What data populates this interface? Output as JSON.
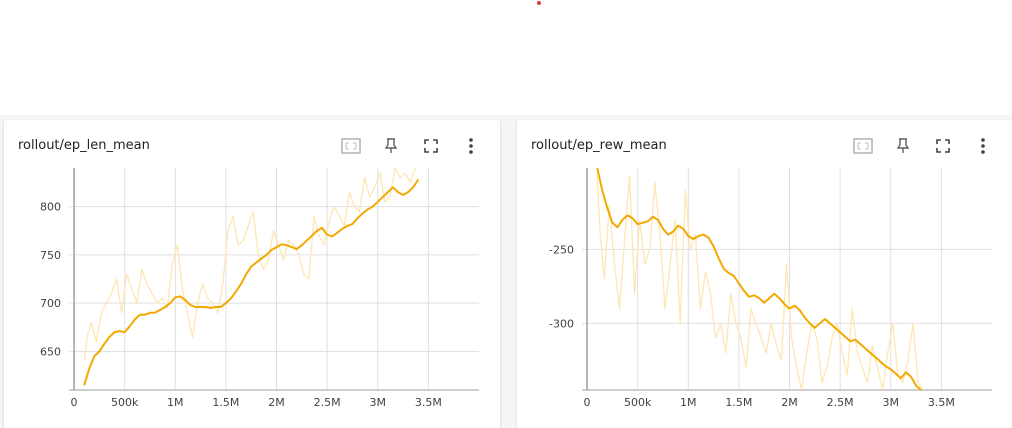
{
  "cards": [
    {
      "title": "rollout/ep_len_mean",
      "tools": [
        "fit-domain-icon",
        "pin-icon",
        "fullscreen-icon",
        "more-vert-icon"
      ],
      "chart_data": {
        "type": "line",
        "xlabel": "",
        "ylabel": "",
        "xlim": [
          -50000,
          4000000
        ],
        "ylim": [
          610,
          840
        ],
        "x_ticks": [
          {
            "v": 0,
            "label": "0"
          },
          {
            "v": 500000,
            "label": "500k"
          },
          {
            "v": 1000000,
            "label": "1M"
          },
          {
            "v": 1500000,
            "label": "1.5M"
          },
          {
            "v": 2000000,
            "label": "2M"
          },
          {
            "v": 2500000,
            "label": "2.5M"
          },
          {
            "v": 3000000,
            "label": "3M"
          },
          {
            "v": 3500000,
            "label": "3.5M"
          }
        ],
        "y_ticks": [
          {
            "v": 650,
            "label": "650"
          },
          {
            "v": 700,
            "label": "700"
          },
          {
            "v": 750,
            "label": "750"
          },
          {
            "v": 800,
            "label": "800"
          }
        ],
        "grid": true,
        "series": [
          {
            "role": "raw",
            "color": "#ffe6b3",
            "x": [
              100000,
              130000,
              170000,
              220000,
              270000,
              320000,
              370000,
              420000,
              470000,
              520000,
              570000,
              620000,
              670000,
              720000,
              770000,
              820000,
              870000,
              920000,
              970000,
              1020000,
              1070000,
              1120000,
              1170000,
              1220000,
              1270000,
              1320000,
              1370000,
              1420000,
              1470000,
              1520000,
              1570000,
              1620000,
              1670000,
              1720000,
              1770000,
              1820000,
              1870000,
              1920000,
              1970000,
              2020000,
              2070000,
              2120000,
              2170000,
              2220000,
              2270000,
              2320000,
              2370000,
              2420000,
              2470000,
              2520000,
              2570000,
              2620000,
              2670000,
              2720000,
              2770000,
              2820000,
              2870000,
              2920000,
              2970000,
              3020000,
              3070000,
              3120000,
              3170000,
              3220000,
              3270000,
              3320000,
              3370000
            ],
            "y": [
              640,
              665,
              680,
              660,
              690,
              700,
              710,
              725,
              690,
              730,
              715,
              700,
              735,
              720,
              710,
              700,
              705,
              695,
              740,
              760,
              715,
              690,
              665,
              700,
              720,
              705,
              700,
              690,
              720,
              775,
              790,
              760,
              765,
              780,
              795,
              750,
              735,
              745,
              775,
              760,
              745,
              765,
              760,
              750,
              730,
              725,
              790,
              770,
              760,
              785,
              800,
              790,
              780,
              815,
              800,
              795,
              830,
              810,
              820,
              835,
              805,
              810,
              840,
              830,
              835,
              825,
              840
            ]
          },
          {
            "role": "smoothed",
            "color": "#f2a900",
            "x": [
              100000,
              150000,
              200000,
              250000,
              300000,
              350000,
              400000,
              450000,
              500000,
              550000,
              600000,
              650000,
              700000,
              750000,
              800000,
              850000,
              900000,
              950000,
              1000000,
              1050000,
              1100000,
              1150000,
              1200000,
              1250000,
              1300000,
              1350000,
              1400000,
              1450000,
              1500000,
              1550000,
              1600000,
              1650000,
              1700000,
              1750000,
              1800000,
              1850000,
              1900000,
              1950000,
              2000000,
              2050000,
              2100000,
              2150000,
              2200000,
              2250000,
              2300000,
              2350000,
              2400000,
              2450000,
              2500000,
              2550000,
              2600000,
              2650000,
              2700000,
              2750000,
              2800000,
              2850000,
              2900000,
              2950000,
              3000000,
              3050000,
              3100000,
              3150000,
              3200000,
              3250000,
              3300000,
              3350000,
              3400000
            ],
            "y": [
              615,
              632,
              645,
              650,
              658,
              665,
              670,
              671,
              670,
              676,
              683,
              688,
              688,
              690,
              690,
              693,
              696,
              700,
              706,
              707,
              703,
              698,
              696,
              696,
              696,
              695,
              696,
              696,
              700,
              705,
              712,
              720,
              730,
              738,
              742,
              746,
              750,
              755,
              758,
              761,
              760,
              758,
              756,
              760,
              765,
              770,
              775,
              778,
              771,
              769,
              773,
              777,
              780,
              782,
              788,
              793,
              797,
              800,
              805,
              810,
              815,
              820,
              815,
              812,
              815,
              820,
              828
            ]
          }
        ]
      }
    },
    {
      "title": "rollout/ep_rew_mean",
      "tools": [
        "fit-domain-icon",
        "pin-icon",
        "fullscreen-icon",
        "more-vert-icon"
      ],
      "chart_data": {
        "type": "line",
        "xlabel": "",
        "ylabel": "",
        "xlim": [
          -50000,
          4000000
        ],
        "ylim": [
          -345,
          -195
        ],
        "x_ticks": [
          {
            "v": 0,
            "label": "0"
          },
          {
            "v": 500000,
            "label": "500k"
          },
          {
            "v": 1000000,
            "label": "1M"
          },
          {
            "v": 1500000,
            "label": "1.5M"
          },
          {
            "v": 2000000,
            "label": "2M"
          },
          {
            "v": 2500000,
            "label": "2.5M"
          },
          {
            "v": 3000000,
            "label": "3M"
          },
          {
            "v": 3500000,
            "label": "3.5M"
          }
        ],
        "y_ticks": [
          {
            "v": -250,
            "label": "-250"
          },
          {
            "v": -300,
            "label": "-300"
          }
        ],
        "grid": true,
        "series": [
          {
            "role": "raw",
            "color": "#ffe6b3",
            "x": [
              100000,
              130000,
              170000,
              220000,
              270000,
              320000,
              370000,
              420000,
              470000,
              520000,
              570000,
              620000,
              670000,
              720000,
              770000,
              820000,
              870000,
              920000,
              970000,
              1020000,
              1070000,
              1120000,
              1170000,
              1220000,
              1270000,
              1320000,
              1370000,
              1420000,
              1470000,
              1520000,
              1570000,
              1620000,
              1670000,
              1720000,
              1770000,
              1820000,
              1870000,
              1920000,
              1970000,
              2020000,
              2070000,
              2120000,
              2170000,
              2220000,
              2270000,
              2320000,
              2370000,
              2420000,
              2470000,
              2520000,
              2570000,
              2620000,
              2670000,
              2720000,
              2770000,
              2820000,
              2870000,
              2920000,
              2970000,
              3020000,
              3070000,
              3120000,
              3170000,
              3220000,
              3270000,
              3320000
            ],
            "y": [
              -200,
              -240,
              -270,
              -220,
              -260,
              -290,
              -245,
              -200,
              -280,
              -230,
              -260,
              -250,
              -205,
              -240,
              -290,
              -260,
              -230,
              -300,
              -210,
              -250,
              -240,
              -290,
              -265,
              -280,
              -310,
              -300,
              -320,
              -280,
              -300,
              -310,
              -330,
              -290,
              -300,
              -310,
              -320,
              -300,
              -315,
              -325,
              -260,
              -310,
              -330,
              -345,
              -320,
              -300,
              -310,
              -340,
              -330,
              -310,
              -300,
              -320,
              -335,
              -290,
              -320,
              -330,
              -340,
              -315,
              -330,
              -345,
              -320,
              -300,
              -335,
              -340,
              -325,
              -300,
              -340,
              -345
            ]
          },
          {
            "role": "smoothed",
            "color": "#f2a900",
            "x": [
              100000,
              150000,
              200000,
              250000,
              300000,
              350000,
              400000,
              450000,
              500000,
              550000,
              600000,
              650000,
              700000,
              750000,
              800000,
              850000,
              900000,
              950000,
              1000000,
              1050000,
              1100000,
              1150000,
              1200000,
              1250000,
              1300000,
              1350000,
              1400000,
              1450000,
              1500000,
              1550000,
              1600000,
              1650000,
              1700000,
              1750000,
              1800000,
              1850000,
              1900000,
              1950000,
              2000000,
              2050000,
              2100000,
              2150000,
              2200000,
              2250000,
              2300000,
              2350000,
              2400000,
              2450000,
              2500000,
              2550000,
              2600000,
              2650000,
              2700000,
              2750000,
              2800000,
              2850000,
              2900000,
              2950000,
              3000000,
              3050000,
              3100000,
              3150000,
              3200000,
              3250000,
              3300000,
              3350000
            ],
            "y": [
              -195,
              -210,
              -222,
              -232,
              -235,
              -230,
              -227,
              -229,
              -233,
              -232,
              -231,
              -228,
              -230,
              -236,
              -240,
              -238,
              -234,
              -236,
              -241,
              -243,
              -241,
              -240,
              -242,
              -248,
              -256,
              -263,
              -266,
              -268,
              -273,
              -278,
              -282,
              -281,
              -283,
              -286,
              -283,
              -280,
              -283,
              -287,
              -290,
              -288,
              -291,
              -296,
              -300,
              -303,
              -300,
              -297,
              -300,
              -303,
              -306,
              -309,
              -312,
              -311,
              -314,
              -317,
              -320,
              -323,
              -326,
              -329,
              -331,
              -334,
              -337,
              -333,
              -336,
              -342,
              -345,
              -348
            ]
          }
        ]
      }
    }
  ]
}
